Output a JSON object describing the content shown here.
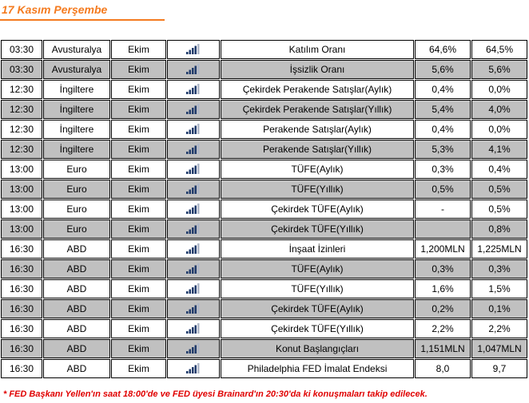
{
  "header": {
    "title": "17 Kasım Perşembe"
  },
  "table": {
    "rows": [
      [
        "03:30",
        "Avusturalya",
        "Ekim",
        "Katılım Oranı",
        "64,6%",
        "64,5%"
      ],
      [
        "03:30",
        "Avusturalya",
        "Ekim",
        "İşsizlik Oranı",
        "5,6%",
        "5,6%"
      ],
      [
        "12:30",
        "İngiltere",
        "Ekim",
        "Çekirdek Perakende Satışlar(Aylık)",
        "0,4%",
        "0,0%"
      ],
      [
        "12:30",
        "İngiltere",
        "Ekim",
        "Çekirdek Perakende Satışlar(Yıllık)",
        "5,4%",
        "4,0%"
      ],
      [
        "12:30",
        "İngiltere",
        "Ekim",
        "Perakende Satışlar(Aylık)",
        "0,4%",
        "0,0%"
      ],
      [
        "12:30",
        "İngiltere",
        "Ekim",
        "Perakende Satışlar(Yıllık)",
        "5,3%",
        "4,1%"
      ],
      [
        "13:00",
        "Euro",
        "Ekim",
        "TÜFE(Aylık)",
        "0,3%",
        "0,4%"
      ],
      [
        "13:00",
        "Euro",
        "Ekim",
        "TÜFE(Yıllık)",
        "0,5%",
        "0,5%"
      ],
      [
        "13:00",
        "Euro",
        "Ekim",
        "Çekirdek TÜFE(Aylık)",
        "-",
        "0,5%"
      ],
      [
        "13:00",
        "Euro",
        "Ekim",
        "Çekirdek TÜFE(Yıllık)",
        null,
        "0,8%"
      ],
      [
        "16:30",
        "ABD",
        "Ekim",
        "İnşaat İzinleri",
        "1,200MLN",
        "1,225MLN"
      ],
      [
        "16:30",
        "ABD",
        "Ekim",
        "TÜFE(Aylık)",
        "0,3%",
        "0,3%"
      ],
      [
        "16:30",
        "ABD",
        "Ekim",
        "TÜFE(Yıllık)",
        "1,6%",
        "1,5%"
      ],
      [
        "16:30",
        "ABD",
        "Ekim",
        "Çekirdek TÜFE(Aylık)",
        "0,2%",
        "0,1%"
      ],
      [
        "16:30",
        "ABD",
        "Ekim",
        "Çekirdek TÜFE(Yıllık)",
        "2,2%",
        "2,2%"
      ],
      [
        "16:30",
        "ABD",
        "Ekim",
        "Konut Başlangıçları",
        "1,151MLN",
        "1,047MLN"
      ],
      [
        "16:30",
        "ABD",
        "Ekim",
        "Philadelphia FED İmalat Endeksi",
        "8,0",
        "9,7"
      ]
    ]
  },
  "footer": {
    "note": "* FED Başkanı Yellen'ın saat 18:00'de ve FED üyesi Brainard'ın 20:30'da ki konuşmaları  takip edilecek."
  }
}
